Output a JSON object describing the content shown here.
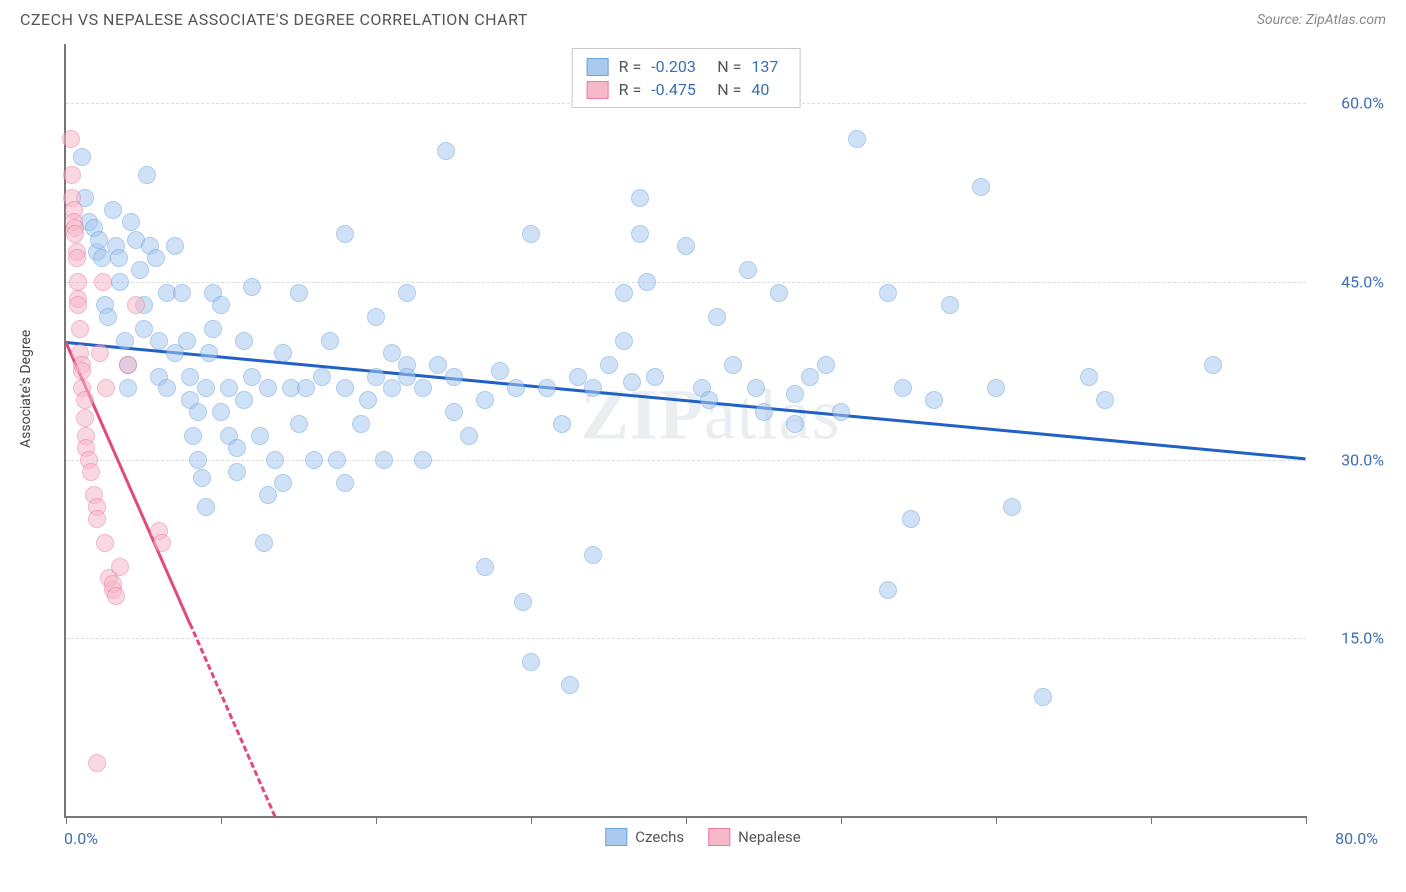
{
  "title": "CZECH VS NEPALESE ASSOCIATE'S DEGREE CORRELATION CHART",
  "source_label": "Source: ZipAtlas.com",
  "y_axis_label": "Associate's Degree",
  "watermark": {
    "prefix": "ZIP",
    "suffix": "atlas"
  },
  "chart": {
    "type": "scatter",
    "xlim": [
      0,
      80
    ],
    "ylim": [
      0,
      65
    ],
    "x_origin_label": "0.0%",
    "x_max_label": "80.0%",
    "y_ticks": [
      {
        "value": 15,
        "label": "15.0%"
      },
      {
        "value": 30,
        "label": "30.0%"
      },
      {
        "value": 45,
        "label": "45.0%"
      },
      {
        "value": 60,
        "label": "60.0%"
      }
    ],
    "x_tick_positions": [
      0,
      10,
      20,
      30,
      40,
      50,
      60,
      70,
      80
    ],
    "grid_color": "#dcdcdc",
    "background_color": "#ffffff",
    "marker_radius": 9,
    "marker_opacity": 0.55,
    "trend_line_width": 3,
    "series": [
      {
        "name": "Czechs",
        "color_fill": "#a9c9ef",
        "color_stroke": "#6fa3dd",
        "trend_color": "#1f61c4",
        "trend": {
          "x1": 0,
          "y1": 40.0,
          "x2": 80,
          "y2": 30.2,
          "dashed": false
        },
        "R": "-0.203",
        "N": "137",
        "points": [
          [
            1.0,
            55.5
          ],
          [
            1.2,
            52.0
          ],
          [
            1.5,
            50.0
          ],
          [
            1.8,
            49.5
          ],
          [
            2.0,
            47.5
          ],
          [
            2.1,
            48.5
          ],
          [
            2.3,
            47.0
          ],
          [
            2.5,
            43.0
          ],
          [
            2.7,
            42.0
          ],
          [
            3.0,
            51.0
          ],
          [
            3.2,
            48.0
          ],
          [
            3.4,
            47.0
          ],
          [
            3.5,
            45.0
          ],
          [
            3.8,
            40.0
          ],
          [
            4.0,
            38.0
          ],
          [
            4.0,
            36.0
          ],
          [
            4.2,
            50.0
          ],
          [
            4.5,
            48.5
          ],
          [
            4.8,
            46.0
          ],
          [
            5.0,
            43.0
          ],
          [
            5.0,
            41.0
          ],
          [
            5.2,
            54.0
          ],
          [
            5.4,
            48.0
          ],
          [
            5.8,
            47.0
          ],
          [
            6.0,
            37.0
          ],
          [
            6.0,
            40.0
          ],
          [
            6.5,
            44.0
          ],
          [
            6.5,
            36.0
          ],
          [
            7.0,
            39.0
          ],
          [
            7.0,
            48.0
          ],
          [
            7.5,
            44.0
          ],
          [
            7.8,
            40.0
          ],
          [
            8.0,
            37.0
          ],
          [
            8.0,
            35.0
          ],
          [
            8.2,
            32.0
          ],
          [
            8.5,
            34.0
          ],
          [
            8.5,
            30.0
          ],
          [
            8.8,
            28.5
          ],
          [
            9.0,
            26.0
          ],
          [
            9.0,
            36.0
          ],
          [
            9.2,
            39.0
          ],
          [
            9.5,
            41.0
          ],
          [
            9.5,
            44.0
          ],
          [
            10.0,
            43.0
          ],
          [
            10.0,
            34.0
          ],
          [
            10.5,
            32.0
          ],
          [
            10.5,
            36.0
          ],
          [
            11.0,
            29.0
          ],
          [
            11.0,
            31.0
          ],
          [
            11.5,
            35.0
          ],
          [
            11.5,
            40.0
          ],
          [
            12.0,
            44.5
          ],
          [
            12.0,
            37.0
          ],
          [
            12.5,
            32.0
          ],
          [
            12.8,
            23.0
          ],
          [
            13.0,
            27.0
          ],
          [
            13.0,
            36.0
          ],
          [
            13.5,
            30.0
          ],
          [
            14.0,
            28.0
          ],
          [
            14.0,
            39.0
          ],
          [
            14.5,
            36.0
          ],
          [
            15.0,
            44.0
          ],
          [
            15.0,
            33.0
          ],
          [
            15.5,
            36.0
          ],
          [
            16.0,
            30.0
          ],
          [
            16.5,
            37.0
          ],
          [
            17.0,
            40.0
          ],
          [
            17.5,
            30.0
          ],
          [
            18.0,
            49.0
          ],
          [
            18.0,
            36.0
          ],
          [
            18.0,
            28.0
          ],
          [
            19.0,
            33.0
          ],
          [
            19.5,
            35.0
          ],
          [
            20.0,
            37.0
          ],
          [
            20.0,
            42.0
          ],
          [
            20.5,
            30.0
          ],
          [
            21.0,
            36.0
          ],
          [
            21.0,
            39.0
          ],
          [
            22.0,
            44.0
          ],
          [
            22.0,
            38.0
          ],
          [
            22.0,
            37.0
          ],
          [
            23.0,
            30.0
          ],
          [
            23.0,
            36.0
          ],
          [
            24.0,
            38.0
          ],
          [
            24.5,
            56.0
          ],
          [
            25.0,
            37.0
          ],
          [
            25.0,
            34.0
          ],
          [
            26.0,
            32.0
          ],
          [
            27.0,
            21.0
          ],
          [
            27.0,
            35.0
          ],
          [
            28.0,
            37.5
          ],
          [
            29.0,
            36.0
          ],
          [
            29.5,
            18.0
          ],
          [
            30.0,
            13.0
          ],
          [
            30.0,
            49.0
          ],
          [
            31.0,
            36.0
          ],
          [
            32.0,
            33.0
          ],
          [
            32.5,
            11.0
          ],
          [
            33.0,
            37.0
          ],
          [
            34.0,
            22.0
          ],
          [
            34.0,
            36.0
          ],
          [
            35.0,
            38.0
          ],
          [
            36.0,
            40.0
          ],
          [
            36.0,
            44.0
          ],
          [
            36.5,
            36.5
          ],
          [
            37.0,
            49.0
          ],
          [
            37.0,
            52.0
          ],
          [
            37.5,
            45.0
          ],
          [
            38.0,
            37.0
          ],
          [
            40.0,
            48.0
          ],
          [
            41.0,
            36.0
          ],
          [
            41.5,
            35.0
          ],
          [
            42.0,
            42.0
          ],
          [
            43.0,
            38.0
          ],
          [
            44.0,
            46.0
          ],
          [
            44.5,
            36.0
          ],
          [
            45.0,
            34.0
          ],
          [
            46.0,
            44.0
          ],
          [
            47.0,
            33.0
          ],
          [
            47.0,
            35.5
          ],
          [
            48.0,
            37.0
          ],
          [
            49.0,
            38.0
          ],
          [
            50.0,
            34.0
          ],
          [
            51.0,
            57.0
          ],
          [
            53.0,
            44.0
          ],
          [
            53.0,
            19.0
          ],
          [
            54.0,
            36.0
          ],
          [
            54.5,
            25.0
          ],
          [
            56.0,
            35.0
          ],
          [
            57.0,
            43.0
          ],
          [
            59.0,
            53.0
          ],
          [
            60.0,
            36.0
          ],
          [
            61.0,
            26.0
          ],
          [
            63.0,
            10.0
          ],
          [
            66.0,
            37.0
          ],
          [
            67.0,
            35.0
          ],
          [
            74.0,
            38.0
          ]
        ]
      },
      {
        "name": "Nepalese",
        "color_fill": "#f6b9c9",
        "color_stroke": "#eb7ba0",
        "trend_color": "#e2497e",
        "trend": {
          "x1": 0,
          "y1": 40.0,
          "x2": 13.5,
          "y2": 0,
          "dashed_after_x": 8
        },
        "R": "-0.475",
        "N": "40",
        "points": [
          [
            0.3,
            57.0
          ],
          [
            0.4,
            54.0
          ],
          [
            0.4,
            52.0
          ],
          [
            0.5,
            51.0
          ],
          [
            0.5,
            50.0
          ],
          [
            0.6,
            49.5
          ],
          [
            0.6,
            49.0
          ],
          [
            0.7,
            47.5
          ],
          [
            0.7,
            47.0
          ],
          [
            0.8,
            45.0
          ],
          [
            0.8,
            43.5
          ],
          [
            0.8,
            43.0
          ],
          [
            0.9,
            41.0
          ],
          [
            0.9,
            39.0
          ],
          [
            1.0,
            38.0
          ],
          [
            1.0,
            37.5
          ],
          [
            1.0,
            36.0
          ],
          [
            1.2,
            35.0
          ],
          [
            1.2,
            33.5
          ],
          [
            1.3,
            32.0
          ],
          [
            1.3,
            31.0
          ],
          [
            1.5,
            30.0
          ],
          [
            1.6,
            29.0
          ],
          [
            1.8,
            27.0
          ],
          [
            2.0,
            26.0
          ],
          [
            2.0,
            25.0
          ],
          [
            2.2,
            39.0
          ],
          [
            2.4,
            45.0
          ],
          [
            2.5,
            23.0
          ],
          [
            2.6,
            36.0
          ],
          [
            2.8,
            20.0
          ],
          [
            3.0,
            19.0
          ],
          [
            3.0,
            19.5
          ],
          [
            3.2,
            18.5
          ],
          [
            3.5,
            21.0
          ],
          [
            4.0,
            38.0
          ],
          [
            4.5,
            43.0
          ],
          [
            6.0,
            24.0
          ],
          [
            6.2,
            23.0
          ],
          [
            2.0,
            4.5
          ]
        ]
      }
    ]
  },
  "legend_bottom": [
    {
      "label": "Czechs",
      "fill": "#a9c9ef",
      "stroke": "#6fa3dd"
    },
    {
      "label": "Nepalese",
      "fill": "#f6b9c9",
      "stroke": "#eb7ba0"
    }
  ]
}
